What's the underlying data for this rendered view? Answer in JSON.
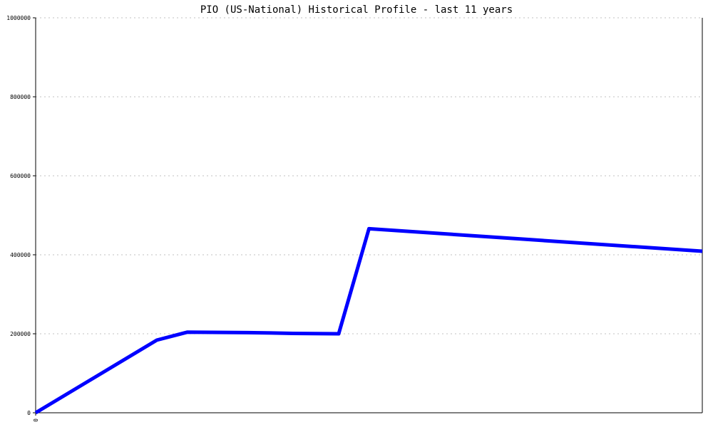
{
  "chart_data": {
    "type": "line",
    "title": "PIO (US-National) Historical Profile - last 11 years",
    "xlabel": "",
    "ylabel": "",
    "ylim": [
      0,
      1000000
    ],
    "yticks": [
      0,
      200000,
      400000,
      600000,
      800000,
      1000000
    ],
    "ytick_labels": [
      "0",
      "200000",
      "400000",
      "600000",
      "800000",
      "1000000"
    ],
    "xtick_labels": [
      "0"
    ],
    "xlim": [
      0,
      22
    ],
    "grid": true,
    "series": [
      {
        "color": "#0000ff",
        "x": [
          0,
          4,
          5,
          7,
          8.5,
          10,
          11,
          16,
          22
        ],
        "y": [
          0,
          184000,
          204000,
          203000,
          201000,
          200000,
          466000,
          440000,
          409000
        ]
      }
    ]
  }
}
